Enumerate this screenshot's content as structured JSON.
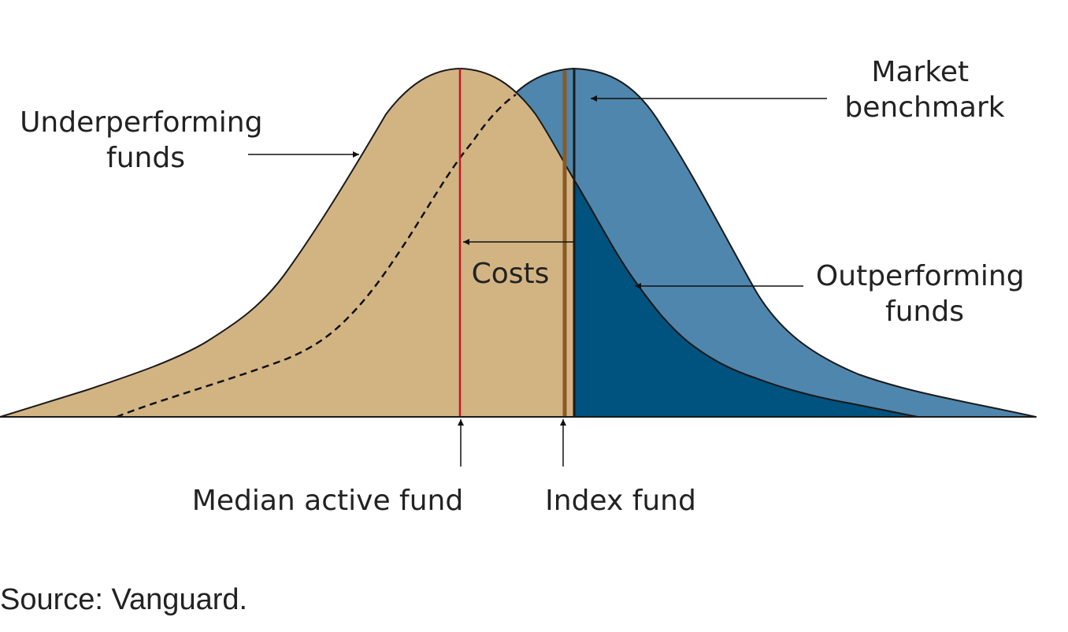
{
  "labels": {
    "underperforming": {
      "lines": [
        "Underperforming",
        "funds"
      ]
    },
    "market_benchmark": {
      "lines": [
        "Market",
        "benchmark"
      ]
    },
    "costs": "Costs",
    "outperforming": {
      "lines": [
        "Outperforming",
        "funds"
      ]
    },
    "median_active_fund": "Median active fund",
    "index_fund": "Index fund"
  },
  "source": "Source: Vanguard."
}
